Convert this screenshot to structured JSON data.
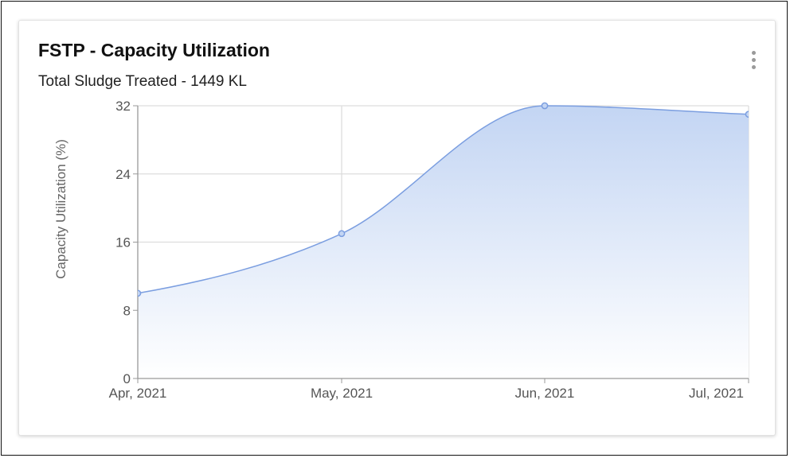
{
  "card": {
    "title": "FSTP - Capacity Utilization",
    "subtitle": "Total Sludge Treated - 1449 KL",
    "menu_icon": "more-vertical-icon"
  },
  "chart_data": {
    "type": "area",
    "categories": [
      "Apr, 2021",
      "May, 2021",
      "Jun, 2021",
      "Jul, 2021"
    ],
    "series": [
      {
        "values": [
          10,
          17,
          32,
          31
        ]
      }
    ],
    "title": "",
    "xlabel": "",
    "ylabel": "Capacity Utilization (%)",
    "ylim": [
      0,
      32
    ],
    "yticks": [
      0,
      8,
      16,
      24,
      32
    ],
    "grid": true,
    "legend": "none",
    "colors": {
      "line": "#7b9ee0",
      "fill_top": "#c3d5f3",
      "fill_bottom": "#ffffff",
      "grid": "#dddddd",
      "axis": "#999999"
    }
  }
}
